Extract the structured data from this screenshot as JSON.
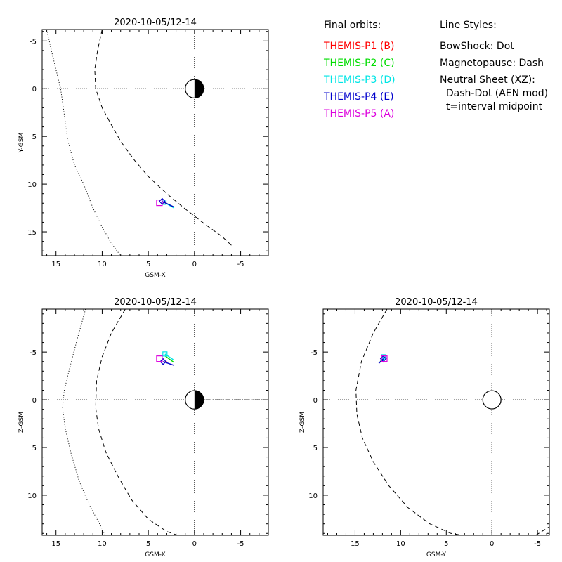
{
  "legend": {
    "orbits_header": "Final orbits:",
    "styles_header": "Line Styles:",
    "probes": [
      {
        "label": "THEMIS-P1 (B)",
        "color": "#ff0000"
      },
      {
        "label": "THEMIS-P2 (C)",
        "color": "#00dd00"
      },
      {
        "label": "THEMIS-P3 (D)",
        "color": "#00e5e5"
      },
      {
        "label": "THEMIS-P4 (E)",
        "color": "#0000cc"
      },
      {
        "label": "THEMIS-P5 (A)",
        "color": "#dd00dd"
      }
    ],
    "styles": [
      "BowShock: Dot",
      "Magnetopause: Dash",
      "Neutral Sheet (XZ):",
      "  Dash-Dot (AEN mod)",
      "  t=interval midpoint"
    ]
  },
  "chart_data": [
    {
      "id": "xy",
      "type": "line",
      "title": "2020-10-05/12-14",
      "xlabel": "GSM-X",
      "ylabel": "Y-GSM",
      "xlim": [
        16.5,
        -8.0
      ],
      "ylim": [
        -6.2,
        17.5
      ],
      "xticks": [
        15,
        10,
        5,
        0,
        -5
      ],
      "xtick_labels": [
        "15",
        "10",
        "5",
        "0",
        "-5"
      ],
      "yticks": [
        -5,
        0,
        5,
        10,
        15
      ],
      "ytick_labels": [
        "-5",
        "0",
        "5",
        "10",
        "15"
      ],
      "earth": {
        "x": 0,
        "y": 0,
        "r": 1,
        "style": "half"
      },
      "bow_shock": {
        "style": "dot",
        "x": [
          16,
          15.5,
          15,
          14.5,
          14.2,
          14,
          13.7,
          13,
          12,
          11,
          10,
          9,
          8
        ],
        "y": [
          -6.2,
          -4,
          -2,
          0,
          2,
          3.5,
          5.5,
          8,
          10,
          12.5,
          14.5,
          16.2,
          17.5
        ]
      },
      "magnetopause": {
        "style": "dash",
        "x": [
          10,
          10.5,
          10.8,
          10.7,
          10,
          9,
          8,
          6.5,
          5,
          3,
          1,
          -1,
          -3,
          -4.1
        ],
        "y": [
          -6.2,
          -4,
          -2,
          0,
          2,
          3.8,
          5.5,
          7.5,
          9.2,
          11,
          12.6,
          14.1,
          15.5,
          16.5
        ]
      },
      "probes": [
        {
          "name": "THEMIS-P1 (B)",
          "x": [
            3.0,
            3.2
          ],
          "y": [
            12.0,
            12.0
          ]
        },
        {
          "name": "THEMIS-P2 (C)",
          "x": [
            3.3,
            2.2
          ],
          "y": [
            11.9,
            12.4
          ]
        },
        {
          "name": "THEMIS-P3 (D)",
          "x": [
            3.3,
            2.2
          ],
          "y": [
            11.9,
            12.5
          ]
        },
        {
          "name": "THEMIS-P4 (E)",
          "x": [
            3.5,
            2.2
          ],
          "y": [
            11.8,
            12.4
          ]
        },
        {
          "name": "THEMIS-P5 (A)",
          "x": [
            3.8,
            3.8
          ],
          "y": [
            11.95,
            11.95
          ]
        }
      ]
    },
    {
      "id": "xz",
      "type": "line",
      "title": "2020-10-05/12-14",
      "xlabel": "GSM-X",
      "ylabel": "Z-GSM",
      "xlim": [
        16.5,
        -8.0
      ],
      "ylim": [
        -9.5,
        14.2
      ],
      "xticks": [
        15,
        10,
        5,
        0,
        -5
      ],
      "xtick_labels": [
        "15",
        "10",
        "5",
        "0",
        "-5"
      ],
      "yticks": [
        -5,
        0,
        5,
        10
      ],
      "ytick_labels": [
        "-5",
        "0",
        "5",
        "10"
      ],
      "earth": {
        "x": 0,
        "y": 0,
        "r": 1,
        "style": "half"
      },
      "bow_shock": {
        "style": "dot",
        "x": [
          11.8,
          12.8,
          13.6,
          14.1,
          14.3,
          14,
          13.4,
          12.5,
          11.4,
          10,
          9.7
        ],
        "y": [
          -9.5,
          -6,
          -3,
          -1,
          0.8,
          3,
          5.5,
          8.5,
          11,
          13.5,
          14.2
        ]
      },
      "magnetopause": {
        "style": "dash",
        "x": [
          7.5,
          9,
          10,
          10.6,
          10.7,
          10.4,
          9.6,
          8.3,
          6.8,
          5,
          3,
          1.8
        ],
        "y": [
          -9.5,
          -7,
          -4.5,
          -2,
          0.8,
          3,
          5.5,
          8,
          10.5,
          12.5,
          13.8,
          14.2
        ]
      },
      "neutral_sheet": {
        "style": "dash-dot",
        "x": [
          -1.2,
          -7.6
        ],
        "y": [
          0,
          0
        ]
      },
      "probes": [
        {
          "name": "THEMIS-P1 (B)",
          "x": [
            3.0,
            3.2
          ],
          "y": [
            -4.0,
            -4.0
          ]
        },
        {
          "name": "THEMIS-P2 (C)",
          "x": [
            3.2,
            2.2
          ],
          "y": [
            -4.6,
            -3.9
          ]
        },
        {
          "name": "THEMIS-P3 (D)",
          "x": [
            3.2,
            2.3
          ],
          "y": [
            -4.8,
            -4.2
          ]
        },
        {
          "name": "THEMIS-P4 (E)",
          "x": [
            3.4,
            2.2
          ],
          "y": [
            -4.0,
            -3.6
          ]
        },
        {
          "name": "THEMIS-P5 (A)",
          "x": [
            3.8,
            3.8
          ],
          "y": [
            -4.3,
            -4.3
          ]
        }
      ]
    },
    {
      "id": "yz",
      "type": "line",
      "title": "2020-10-05/12-14",
      "xlabel": "GSM-Y",
      "ylabel": "Z-GSM",
      "xlim": [
        18.5,
        -6.3
      ],
      "ylim": [
        -9.5,
        14.2
      ],
      "xticks": [
        15,
        10,
        5,
        0,
        -5
      ],
      "xtick_labels": [
        "15",
        "10",
        "5",
        "0",
        "-5"
      ],
      "yticks": [
        -5,
        0,
        5,
        10
      ],
      "ytick_labels": [
        "-5",
        "0",
        "5",
        "10"
      ],
      "earth": {
        "x": 0,
        "y": 0,
        "r": 1,
        "style": "full"
      },
      "magnetopause": {
        "style": "dash",
        "x": [
          11.5,
          13,
          14.3,
          14.9,
          14.8,
          14.2,
          13,
          11.3,
          9.2,
          6.8,
          4.5,
          3.2
        ],
        "y": [
          -9.5,
          -7,
          -4,
          -1,
          1.5,
          4,
          6.5,
          9,
          11.3,
          13,
          14,
          14.2
        ]
      },
      "corner_segment": {
        "style": "dash",
        "x": [
          -4.8,
          -6.3
        ],
        "y": [
          14.2,
          13.3
        ]
      },
      "probes": [
        {
          "name": "THEMIS-P1 (B)",
          "x": [
            12.0,
            12.0
          ],
          "y": [
            -4.1,
            -4.1
          ]
        },
        {
          "name": "THEMIS-P2 (C)",
          "x": [
            12.0,
            12.3
          ],
          "y": [
            -4.3,
            -3.9
          ]
        },
        {
          "name": "THEMIS-P3 (D)",
          "x": [
            11.9,
            11.9
          ],
          "y": [
            -4.5,
            -3.9
          ]
        },
        {
          "name": "THEMIS-P4 (E)",
          "x": [
            11.9,
            12.4
          ],
          "y": [
            -4.3,
            -3.8
          ]
        },
        {
          "name": "THEMIS-P5 (A)",
          "x": [
            11.8,
            11.8
          ],
          "y": [
            -4.3,
            -4.3
          ]
        }
      ]
    }
  ]
}
